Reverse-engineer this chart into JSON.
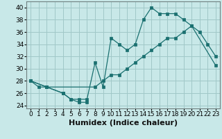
{
  "xlabel": "Humidex (Indice chaleur)",
  "bg_color": "#c8e8e8",
  "grid_color": "#a0c8c8",
  "line_color": "#1a7070",
  "xlim": [
    -0.5,
    23.5
  ],
  "ylim": [
    23.5,
    41.0
  ],
  "xticks": [
    0,
    1,
    2,
    3,
    4,
    5,
    6,
    7,
    8,
    9,
    10,
    11,
    12,
    13,
    14,
    15,
    16,
    17,
    18,
    19,
    20,
    21,
    22,
    23
  ],
  "yticks": [
    24,
    26,
    28,
    30,
    32,
    34,
    36,
    38,
    40
  ],
  "line1_x": [
    0,
    1,
    2,
    4,
    5,
    6,
    7
  ],
  "line1_y": [
    28,
    27,
    27,
    26,
    25,
    24.5,
    24.5
  ],
  "line2_x": [
    0,
    2,
    4,
    5,
    6,
    7,
    8,
    9,
    10,
    11,
    12,
    13,
    14,
    15,
    16,
    17,
    18,
    19,
    20,
    21,
    22,
    23
  ],
  "line2_y": [
    28,
    27,
    26,
    25,
    25,
    25,
    31,
    27,
    35,
    34,
    33,
    34,
    38,
    40,
    39,
    39,
    39,
    38,
    37,
    36,
    34,
    32
  ],
  "line3_x": [
    0,
    2,
    8,
    9,
    10,
    11,
    12,
    13,
    14,
    15,
    16,
    17,
    18,
    19,
    20,
    23
  ],
  "line3_y": [
    28,
    27,
    27,
    28,
    29,
    29,
    30,
    31,
    32,
    33,
    34,
    35,
    35,
    36,
    37,
    30.5
  ],
  "xlabel_fontsize": 8,
  "tick_fontsize": 6.5,
  "linewidth": 0.9,
  "markersize": 2.5
}
